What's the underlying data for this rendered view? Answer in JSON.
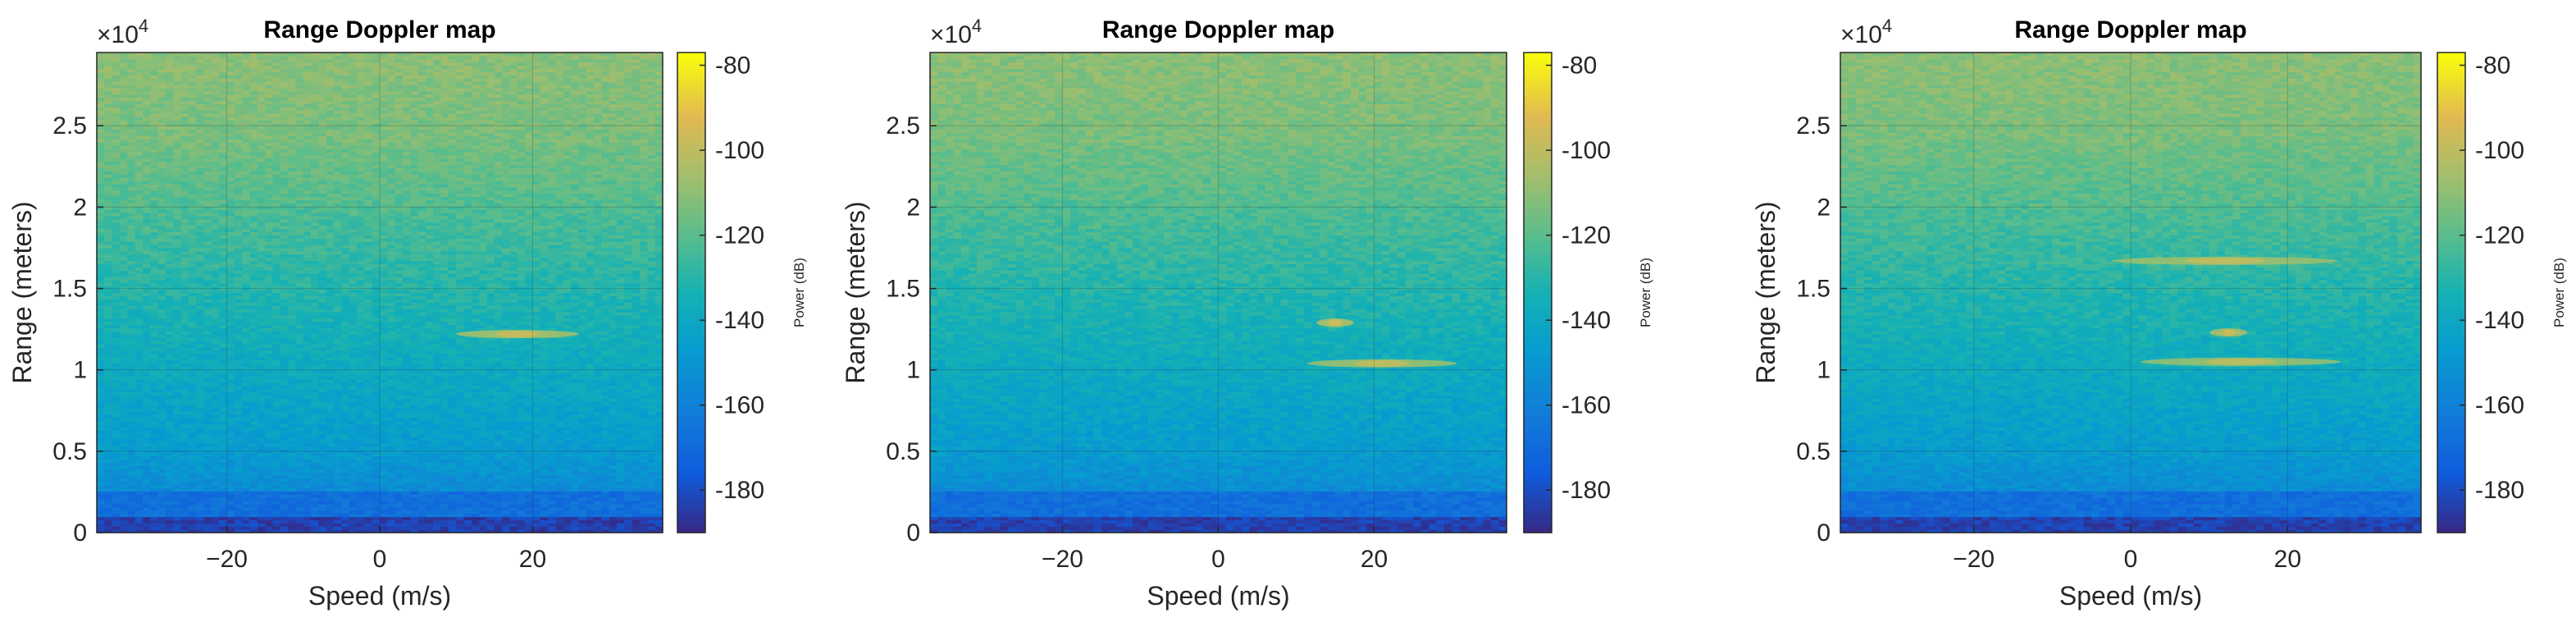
{
  "colors": {
    "colormap": "parula",
    "axis_line": "#262626",
    "grid": "#1a1a1a"
  },
  "chart_data": [
    {
      "type": "heatmap",
      "title": "Range Doppler map",
      "xlabel": "Speed (m/s)",
      "ylabel": "Range (meters)",
      "y_exponent_label": "×10",
      "y_exponent_power": "4",
      "xlim": [
        -37,
        37
      ],
      "ylim": [
        0,
        29500
      ],
      "x_ticks": [
        -20,
        0,
        20
      ],
      "x_tick_labels": [
        "−20",
        "0",
        "20"
      ],
      "y_ticks": [
        0,
        5000,
        10000,
        15000,
        20000,
        25000
      ],
      "y_tick_labels": [
        "0",
        "0.5",
        "1",
        "1.5",
        "2",
        "2.5"
      ],
      "grid": true,
      "colorbar": {
        "label": "Power (dB)",
        "range": [
          -190,
          -77
        ],
        "ticks": [
          -80,
          -100,
          -120,
          -140,
          -160,
          -180
        ],
        "tick_labels": [
          "-80",
          "-100",
          "-120",
          "-140",
          "-160",
          "-180"
        ]
      },
      "targets": [
        {
          "speed": 18,
          "range": 12200,
          "power": -98,
          "speed_spread": 5
        }
      ]
    },
    {
      "type": "heatmap",
      "title": "Range Doppler map",
      "xlabel": "Speed (m/s)",
      "ylabel": "Range (meters)",
      "y_exponent_label": "×10",
      "y_exponent_power": "4",
      "xlim": [
        -37,
        37
      ],
      "ylim": [
        0,
        29500
      ],
      "x_ticks": [
        -20,
        0,
        20
      ],
      "x_tick_labels": [
        "−20",
        "0",
        "20"
      ],
      "y_ticks": [
        0,
        5000,
        10000,
        15000,
        20000,
        25000
      ],
      "y_tick_labels": [
        "0",
        "0.5",
        "1",
        "1.5",
        "2",
        "2.5"
      ],
      "grid": true,
      "colorbar": {
        "label": "Power (dB)",
        "range": [
          -190,
          -77
        ],
        "ticks": [
          -80,
          -100,
          -120,
          -140,
          -160,
          -180
        ],
        "tick_labels": [
          "-80",
          "-100",
          "-120",
          "-140",
          "-160",
          "-180"
        ]
      },
      "targets": [
        {
          "speed": 15,
          "range": 12900,
          "power": -96,
          "speed_spread": 1.5
        },
        {
          "speed": 21,
          "range": 10400,
          "power": -100,
          "speed_spread": 6
        }
      ]
    },
    {
      "type": "heatmap",
      "title": "Range Doppler map",
      "xlabel": "Speed (m/s)",
      "ylabel": "Range (meters)",
      "y_exponent_label": "×10",
      "y_exponent_power": "4",
      "xlim": [
        -37,
        37
      ],
      "ylim": [
        0,
        29500
      ],
      "x_ticks": [
        -20,
        0,
        20
      ],
      "x_tick_labels": [
        "−20",
        "0",
        "20"
      ],
      "y_ticks": [
        0,
        5000,
        10000,
        15000,
        20000,
        25000
      ],
      "y_tick_labels": [
        "0",
        "0.5",
        "1",
        "1.5",
        "2",
        "2.5"
      ],
      "grid": true,
      "colorbar": {
        "label": "Power (dB)",
        "range": [
          -190,
          -77
        ],
        "ticks": [
          -80,
          -100,
          -120,
          -140,
          -160,
          -180
        ],
        "tick_labels": [
          "-80",
          "-100",
          "-120",
          "-140",
          "-160",
          "-180"
        ]
      },
      "targets": [
        {
          "speed": 12,
          "range": 16700,
          "power": -100,
          "speed_spread": 9
        },
        {
          "speed": 12.5,
          "range": 12300,
          "power": -97,
          "speed_spread": 1.5
        },
        {
          "speed": 14,
          "range": 10500,
          "power": -101,
          "speed_spread": 8
        }
      ]
    }
  ]
}
